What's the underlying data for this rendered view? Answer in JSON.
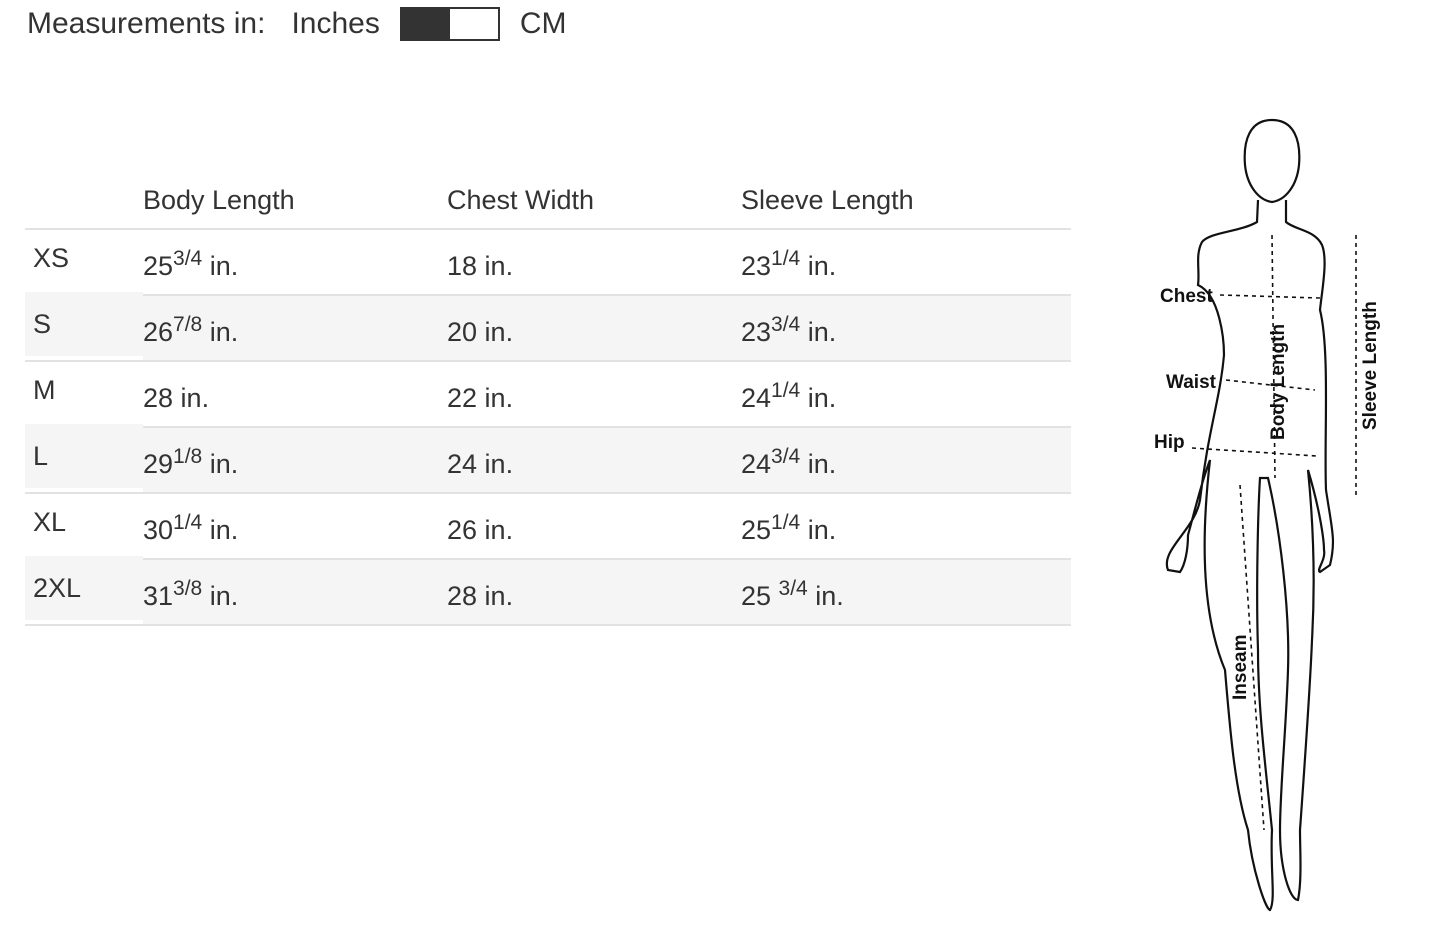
{
  "units": {
    "label": "Measurements in:",
    "left_option": "Inches",
    "right_option": "CM",
    "selected": "Inches"
  },
  "table": {
    "headers": [
      "",
      "Body Length",
      "Chest Width",
      "Sleeve Length"
    ],
    "rows": [
      {
        "size": "XS",
        "body": {
          "whole": "25",
          "frac": "3/4",
          "unit": " in."
        },
        "chest": {
          "whole": "18",
          "frac": "",
          "unit": " in."
        },
        "sleeve": {
          "whole": "23",
          "frac": "1/4",
          "unit": " in."
        }
      },
      {
        "size": "S",
        "body": {
          "whole": "26",
          "frac": "7/8",
          "unit": " in."
        },
        "chest": {
          "whole": "20",
          "frac": "",
          "unit": " in."
        },
        "sleeve": {
          "whole": "23",
          "frac": "3/4",
          "unit": " in."
        }
      },
      {
        "size": "M",
        "body": {
          "whole": "28",
          "frac": "",
          "unit": " in."
        },
        "chest": {
          "whole": "22",
          "frac": "",
          "unit": " in."
        },
        "sleeve": {
          "whole": "24",
          "frac": "1/4",
          "unit": " in."
        }
      },
      {
        "size": "L",
        "body": {
          "whole": "29",
          "frac": "1/8",
          "unit": " in."
        },
        "chest": {
          "whole": "24",
          "frac": "",
          "unit": " in."
        },
        "sleeve": {
          "whole": "24",
          "frac": "3/4",
          "unit": " in."
        }
      },
      {
        "size": "XL",
        "body": {
          "whole": "30",
          "frac": "1/4",
          "unit": " in."
        },
        "chest": {
          "whole": "26",
          "frac": "",
          "unit": " in."
        },
        "sleeve": {
          "whole": "25",
          "frac": "1/4",
          "unit": " in."
        }
      },
      {
        "size": "2XL",
        "body": {
          "whole": "31",
          "frac": "3/8",
          "unit": " in."
        },
        "chest": {
          "whole": "28",
          "frac": "",
          "unit": " in."
        },
        "sleeve": {
          "whole": "25 ",
          "frac": "3/4",
          "unit": " in."
        }
      }
    ]
  },
  "figure": {
    "labels": {
      "chest": "Chest",
      "waist": "Waist",
      "hip": "Hip",
      "body_length": "Body Length",
      "sleeve_length": "Sleeve Length",
      "inseam": "Inseam"
    }
  }
}
